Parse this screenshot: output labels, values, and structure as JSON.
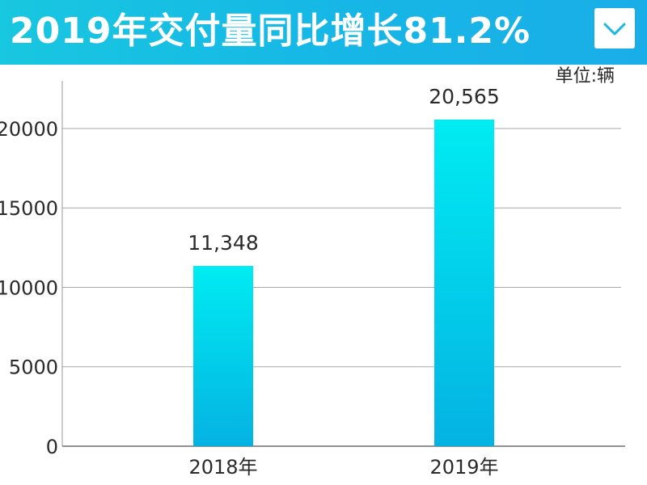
{
  "header": {
    "title": "2019年交付量同比增长81.2%",
    "bg_color": "#18c7e0",
    "dropdown_icon": "chevron-down-icon"
  },
  "chart_data": {
    "type": "bar",
    "title": "2019年交付量同比增长81.2%",
    "unit_label": "单位:辆",
    "categories": [
      "2018年",
      "2019年"
    ],
    "values": [
      11348,
      20565
    ],
    "data_labels": [
      "11,348",
      "20,565"
    ],
    "ylim": [
      0,
      23000
    ],
    "yticks": [
      0,
      5000,
      10000,
      15000,
      20000
    ],
    "grid": true,
    "xlabel": "",
    "ylabel": "",
    "bar_color_top": "#00ecf2",
    "bar_color_bottom": "#04b2e2"
  }
}
